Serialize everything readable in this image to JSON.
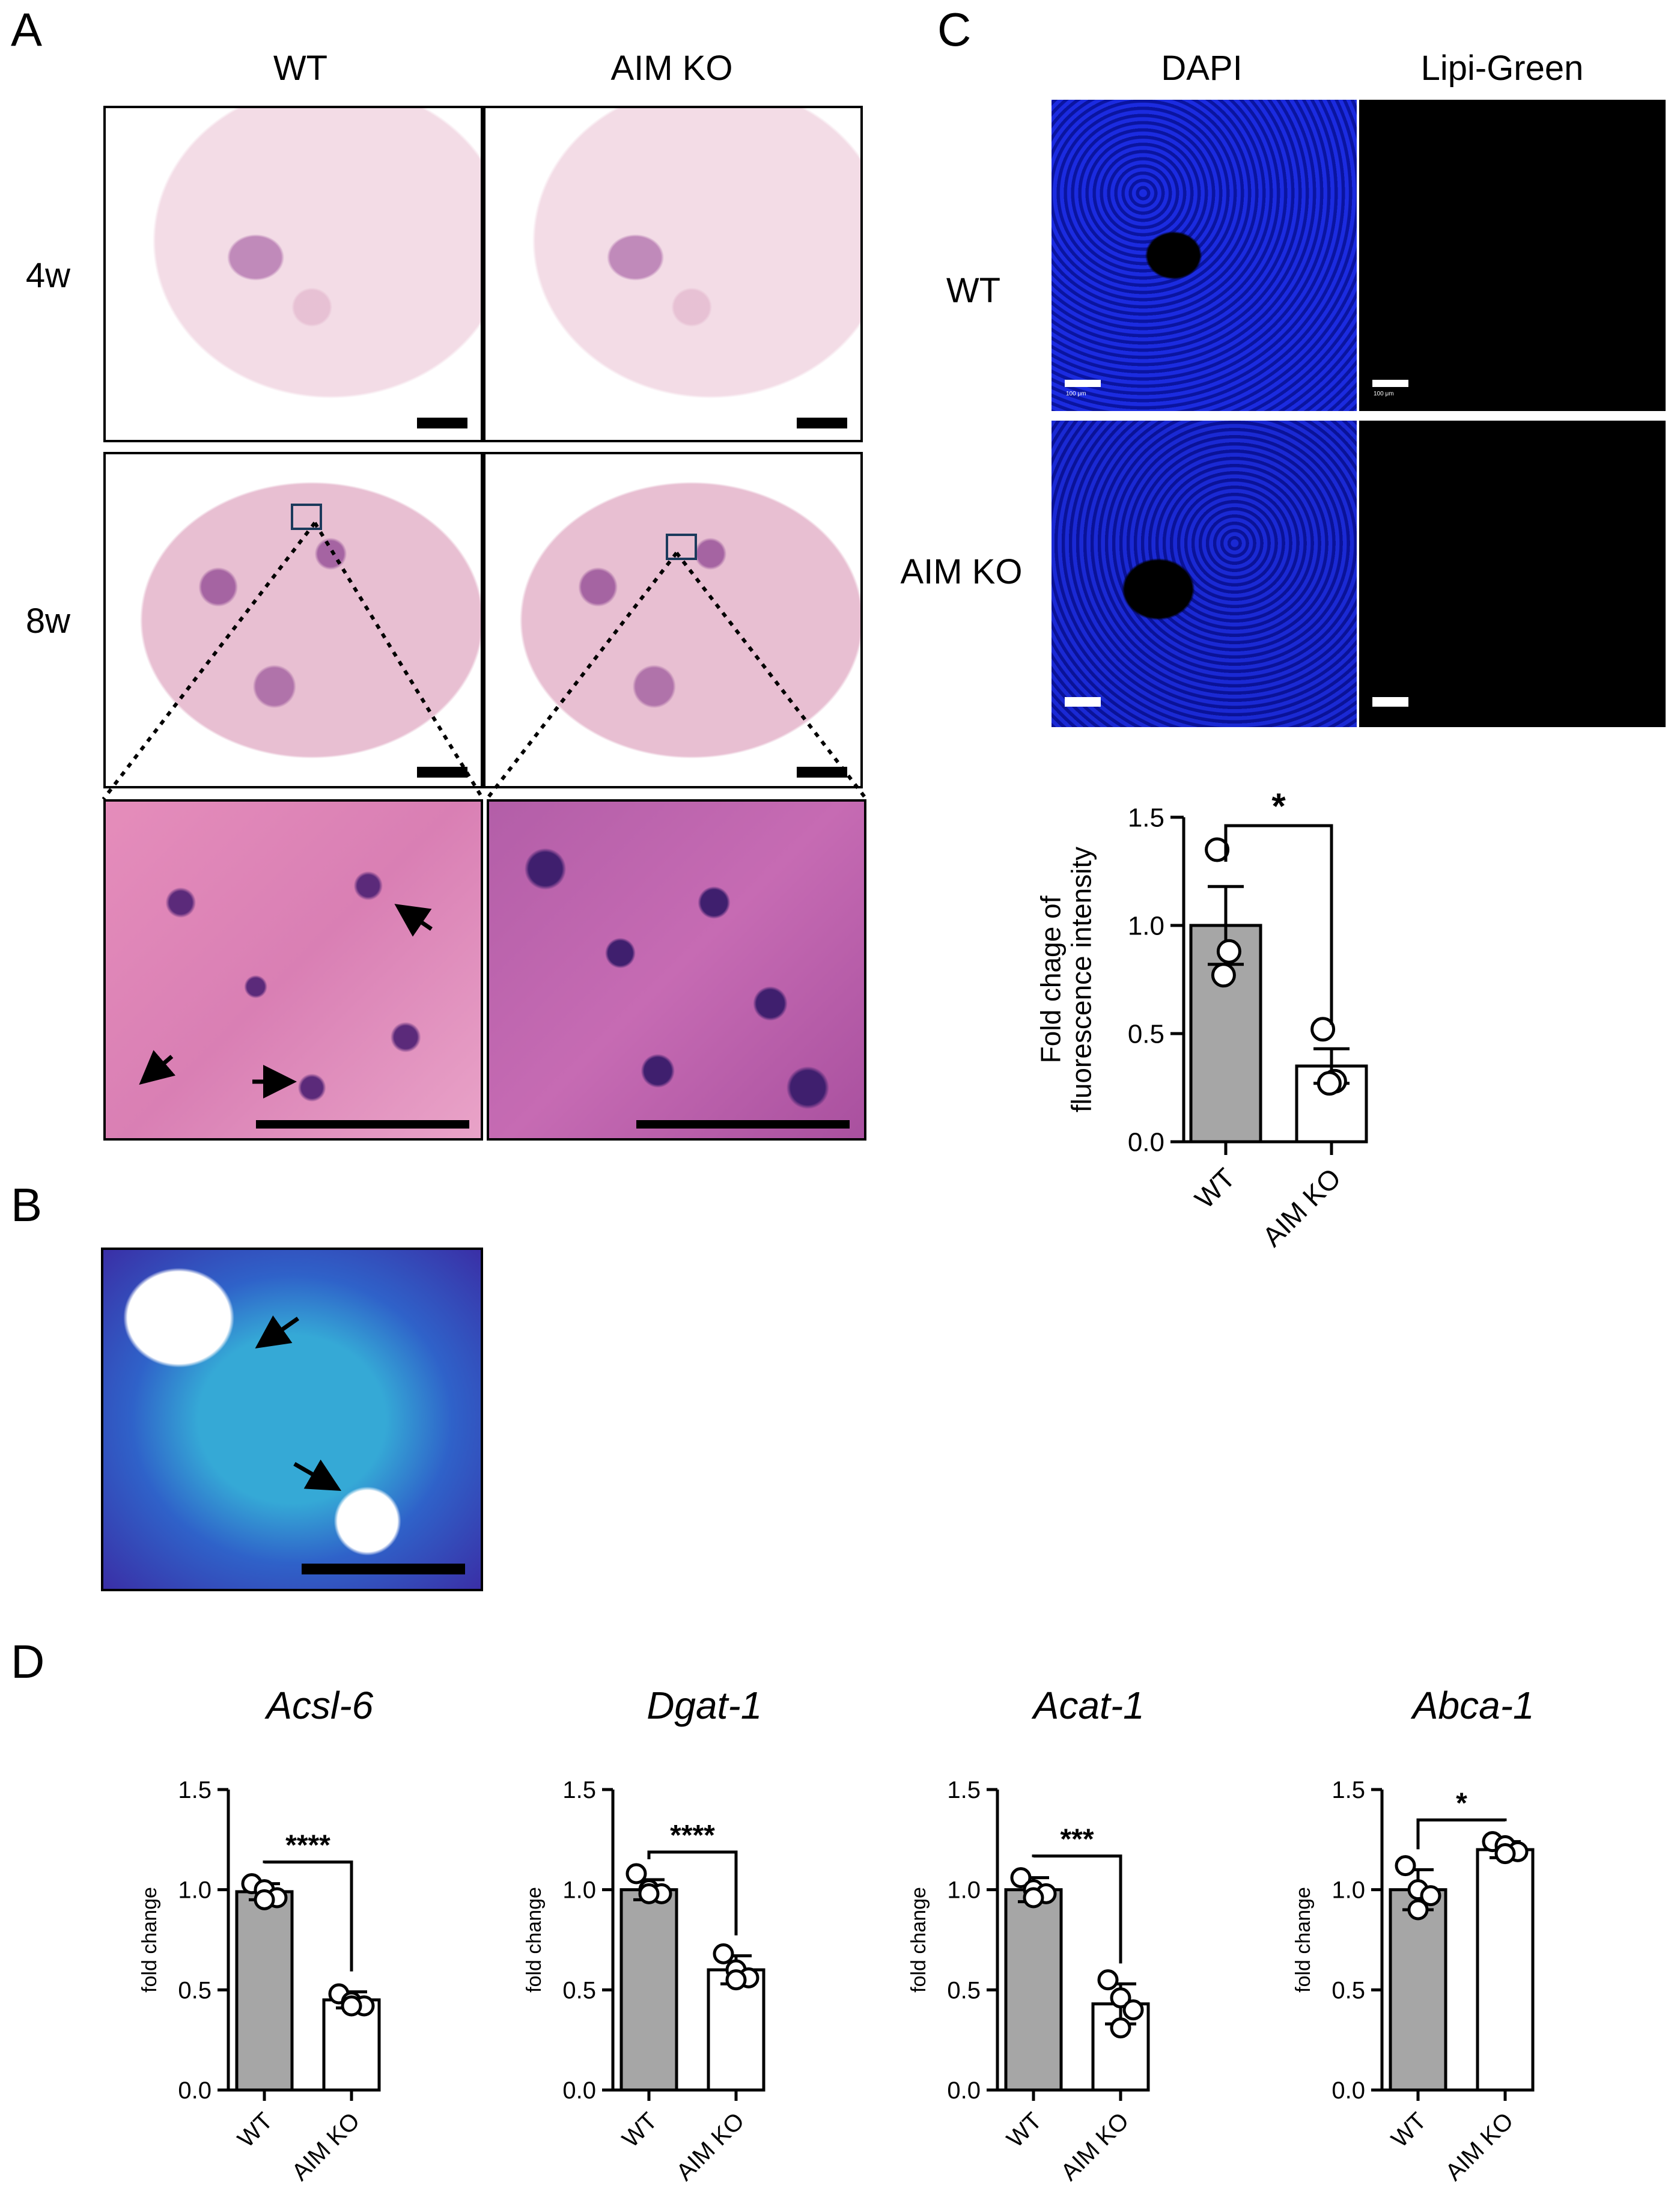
{
  "panels": {
    "A": {
      "label": "A",
      "col_wt": "WT",
      "col_ko": "AIM KO",
      "row_4w": "4w",
      "row_8w": "8w"
    },
    "B": {
      "label": "B"
    },
    "C": {
      "label": "C",
      "col_dapi": "DAPI",
      "col_lipi": "Lipi-Green",
      "row_wt": "WT",
      "row_ko": "AIM KO",
      "scale_text": "100 μm"
    },
    "D": {
      "label": "D"
    }
  },
  "colors": {
    "wt_bar": "#a6a6a6",
    "ko_bar": "#ffffff"
  },
  "chart_data": [
    {
      "id": "C-chart",
      "type": "bar",
      "categories": [
        "WT",
        "AIM KO"
      ],
      "values": [
        1.0,
        0.35
      ],
      "errors": [
        0.18,
        0.08
      ],
      "points": [
        [
          1.35,
          0.88,
          0.77
        ],
        [
          0.52,
          0.28,
          0.27
        ]
      ],
      "ylabel": "Fold chage of\nfluorescence intensity",
      "ylim": [
        0,
        1.5
      ],
      "yticks": [
        "0.0",
        "0.5",
        "1.0",
        "1.5"
      ],
      "significance": "*"
    },
    {
      "id": "D-acsl6",
      "type": "bar",
      "title": "Acsl-6",
      "categories": [
        "WT",
        "AIM KO"
      ],
      "values": [
        0.99,
        0.45
      ],
      "errors": [
        0.04,
        0.04
      ],
      "points": [
        [
          1.03,
          1.0,
          0.96,
          0.95
        ],
        [
          0.48,
          0.44,
          0.42,
          0.42
        ]
      ],
      "ylabel": "fold change",
      "ylim": [
        0,
        1.5
      ],
      "yticks": [
        "0.0",
        "0.5",
        "1.0",
        "1.5"
      ],
      "significance": "****"
    },
    {
      "id": "D-dgat1",
      "type": "bar",
      "title": "Dgat-1",
      "categories": [
        "WT",
        "AIM KO"
      ],
      "values": [
        1.0,
        0.6
      ],
      "errors": [
        0.05,
        0.07
      ],
      "points": [
        [
          1.08,
          1.0,
          0.98,
          0.98
        ],
        [
          0.68,
          0.6,
          0.56,
          0.55
        ]
      ],
      "ylabel": "fold change",
      "ylim": [
        0,
        1.5
      ],
      "yticks": [
        "0.0",
        "0.5",
        "1.0",
        "1.5"
      ],
      "significance": "****"
    },
    {
      "id": "D-acat1",
      "type": "bar",
      "title": "Acat-1",
      "categories": [
        "WT",
        "AIM KO"
      ],
      "values": [
        1.0,
        0.43
      ],
      "errors": [
        0.06,
        0.1
      ],
      "points": [
        [
          1.06,
          1.0,
          0.98,
          0.96
        ],
        [
          0.55,
          0.46,
          0.4,
          0.31
        ]
      ],
      "ylabel": "fold change",
      "ylim": [
        0,
        1.5
      ],
      "yticks": [
        "0.0",
        "0.5",
        "1.0",
        "1.5"
      ],
      "significance": "***"
    },
    {
      "id": "D-abca1",
      "type": "bar",
      "title": "Abca-1",
      "categories": [
        "WT",
        "AIM KO"
      ],
      "values": [
        1.0,
        1.2
      ],
      "errors": [
        0.1,
        0.04
      ],
      "points": [
        [
          1.12,
          1.0,
          0.97,
          0.9
        ],
        [
          1.24,
          1.22,
          1.19,
          1.18
        ]
      ],
      "ylabel": "fold change",
      "ylim": [
        0,
        1.5
      ],
      "yticks": [
        "0.0",
        "0.5",
        "1.0",
        "1.5"
      ],
      "significance": "*"
    }
  ]
}
